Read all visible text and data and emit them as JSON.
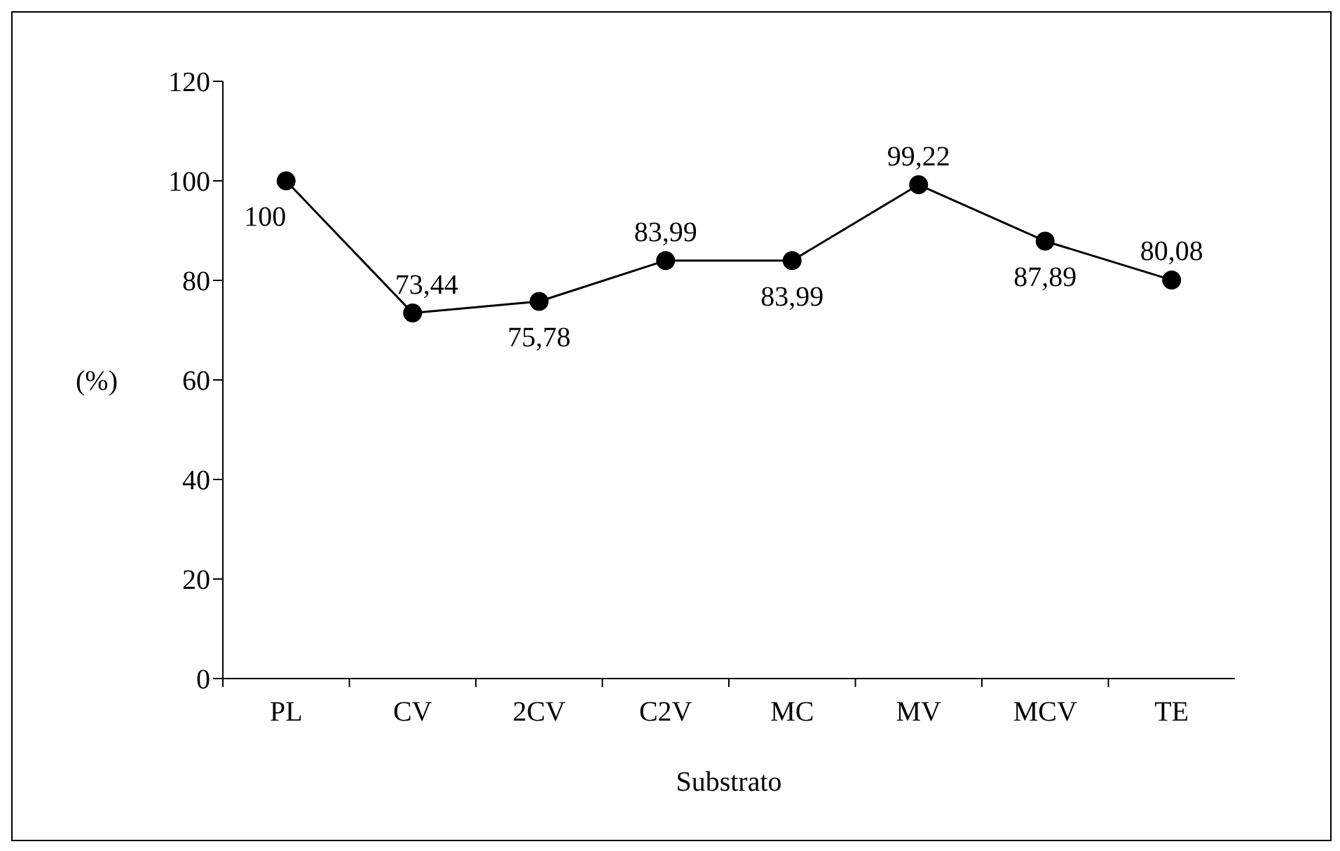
{
  "chart_data": {
    "type": "line",
    "xlabel": "Substrato",
    "ylabel": "(%)",
    "categories": [
      "PL",
      "CV",
      "2CV",
      "C2V",
      "MC",
      "MV",
      "MCV",
      "TE"
    ],
    "values": [
      100,
      73.44,
      75.78,
      83.99,
      83.99,
      99.22,
      87.89,
      80.08
    ],
    "value_labels": [
      "100",
      "73,44",
      "75,78",
      "83,99",
      "83,99",
      "99,22",
      "87,89",
      "80,08"
    ],
    "color": "#000000",
    "marker": "circle",
    "line_style": "solid",
    "ylim": [
      0,
      120
    ],
    "yticks": [
      0,
      20,
      40,
      60,
      80,
      100,
      120
    ],
    "grid": false
  }
}
